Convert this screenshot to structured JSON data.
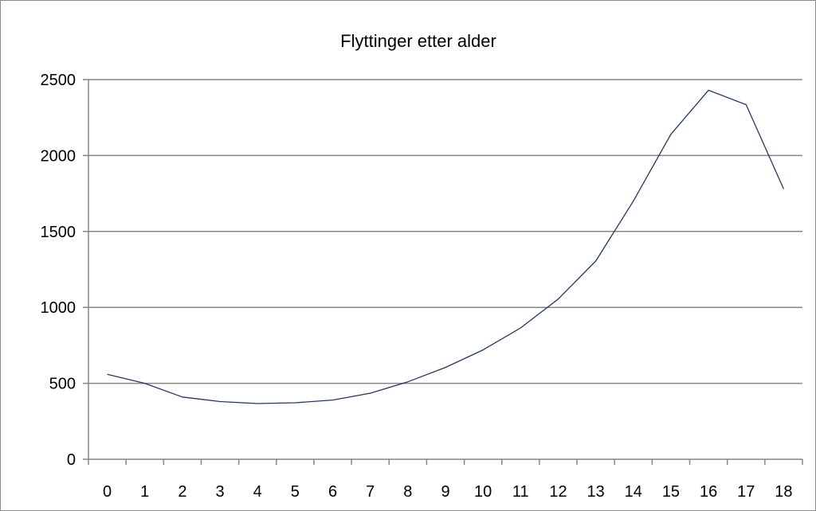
{
  "chart_data": {
    "type": "line",
    "title": "Flyttinger etter alder",
    "xlabel": "",
    "ylabel": "",
    "categories": [
      "0",
      "1",
      "2",
      "3",
      "4",
      "5",
      "6",
      "7",
      "8",
      "9",
      "10",
      "11",
      "12",
      "13",
      "14",
      "15",
      "16",
      "17",
      "18"
    ],
    "series": [
      {
        "values": [
          560,
          500,
          410,
          380,
          367,
          372,
          390,
          435,
          510,
          605,
          720,
          865,
          1055,
          1305,
          1700,
          2140,
          2430,
          2335,
          1780
        ]
      }
    ],
    "ylim": [
      0,
      2500
    ],
    "yticks": [
      0,
      500,
      1000,
      1500,
      2000,
      2500
    ],
    "grid": "horizontal",
    "legend": "none",
    "colors": {
      "line": "#1f3864",
      "grid": "#868686",
      "axis": "#868686"
    }
  }
}
